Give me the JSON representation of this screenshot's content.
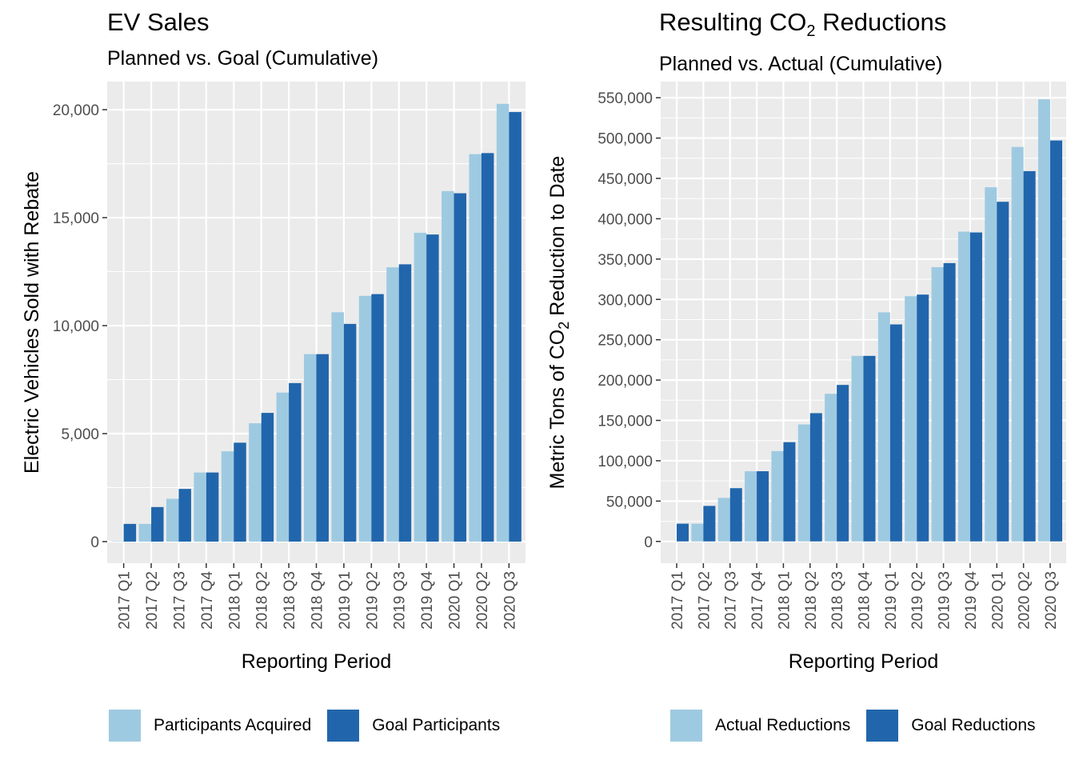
{
  "colors": {
    "light_series": "#9ECAE1",
    "dark_series": "#2166AC",
    "panel_bg": "#EBEBEB",
    "grid": "#FFFFFF",
    "axis_text": "#4D4D4D"
  },
  "left": {
    "title": "EV Sales",
    "subtitle": "Planned vs. Goal (Cumulative)",
    "legend": [
      "Participants Acquired",
      "Goal Participants"
    ]
  },
  "right": {
    "title_main": "Resulting CO",
    "title_sub": "2",
    "title_end": " Reductions",
    "subtitle": "Planned vs. Actual (Cumulative)",
    "legend": [
      "Actual Reductions",
      "Goal Reductions"
    ]
  },
  "chart_data": [
    {
      "type": "bar",
      "title": "EV Sales",
      "subtitle": "Planned vs. Goal (Cumulative)",
      "xlabel": "Reporting Period",
      "ylabel": "Electric Vehicles Sold with Rebate",
      "ylim": [
        -1000,
        21300
      ],
      "yticks": [
        0,
        5000,
        10000,
        15000,
        20000
      ],
      "ytick_labels": [
        "0",
        "5,000",
        "10,000",
        "15,000",
        "20,000"
      ],
      "categories": [
        "2017 Q1",
        "2017 Q2",
        "2017 Q3",
        "2017 Q4",
        "2018 Q1",
        "2018 Q2",
        "2018 Q3",
        "2018 Q4",
        "2019 Q1",
        "2019 Q2",
        "2019 Q3",
        "2019 Q4",
        "2020 Q1",
        "2020 Q2",
        "2020 Q3"
      ],
      "series": [
        {
          "name": "Participants Acquired",
          "color": "#9ECAE1",
          "values": [
            20,
            820,
            1980,
            3200,
            4180,
            5480,
            6900,
            8680,
            10620,
            11380,
            12700,
            14300,
            16230,
            17940,
            20270
          ]
        },
        {
          "name": "Goal Participants",
          "color": "#2166AC",
          "values": [
            820,
            1600,
            2440,
            3200,
            4580,
            5960,
            7340,
            8680,
            10080,
            11460,
            12840,
            14220,
            16130,
            17990,
            19890
          ]
        }
      ],
      "legend_position": "bottom",
      "grid": true
    },
    {
      "type": "bar",
      "title": "Resulting CO2 Reductions",
      "subtitle": "Planned vs. Actual (Cumulative)",
      "xlabel": "Reporting Period",
      "ylabel": "Metric Tons of CO2 Reduction to Date",
      "ylim": [
        -27000,
        570000
      ],
      "yticks": [
        0,
        50000,
        100000,
        150000,
        200000,
        250000,
        300000,
        350000,
        400000,
        450000,
        500000,
        550000
      ],
      "ytick_labels": [
        "0",
        "50,000",
        "100,000",
        "150,000",
        "200,000",
        "250,000",
        "300,000",
        "350,000",
        "400,000",
        "450,000",
        "500,000",
        "550,000"
      ],
      "categories": [
        "2017 Q1",
        "2017 Q2",
        "2017 Q3",
        "2017 Q4",
        "2018 Q1",
        "2018 Q2",
        "2018 Q3",
        "2018 Q4",
        "2019 Q1",
        "2019 Q2",
        "2019 Q3",
        "2019 Q4",
        "2020 Q1",
        "2020 Q2",
        "2020 Q3"
      ],
      "series": [
        {
          "name": "Actual Reductions",
          "color": "#9ECAE1",
          "values": [
            0,
            22000,
            54000,
            87000,
            112000,
            145000,
            183000,
            230000,
            284000,
            304000,
            340000,
            384000,
            439000,
            489000,
            548000
          ]
        },
        {
          "name": "Goal Reductions",
          "color": "#2166AC",
          "values": [
            22000,
            44000,
            66000,
            87000,
            123000,
            159000,
            194000,
            230000,
            269000,
            306000,
            345000,
            383000,
            421000,
            459000,
            497000
          ]
        }
      ],
      "legend_position": "bottom",
      "grid": true
    }
  ]
}
